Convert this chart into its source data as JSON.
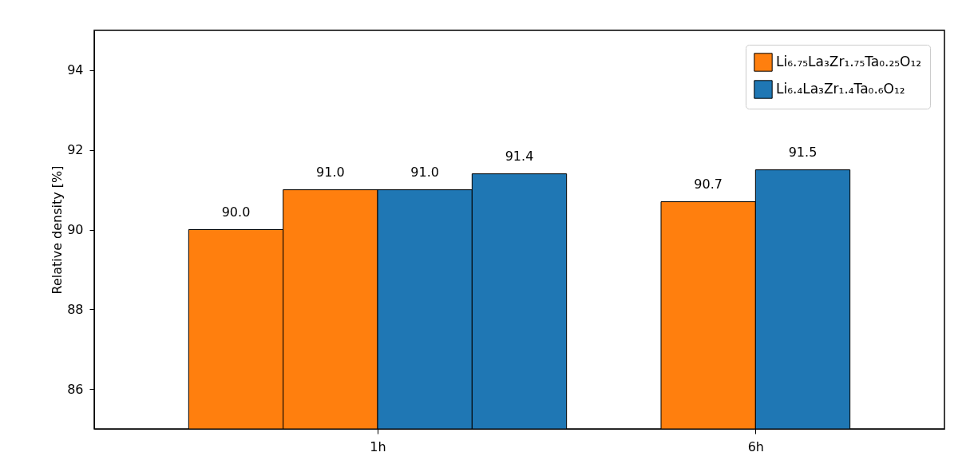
{
  "chart_data": {
    "type": "bar",
    "ylabel": "Relative density [%]",
    "categories": [
      "1h",
      "6h"
    ],
    "series": [
      {
        "name": "Li₆.₇₅La₃Zr₁.₇₅Ta₀.₂₅O₁₂",
        "color": "#ff7f0e",
        "values": [
          90.0,
          90.7
        ],
        "value_labels": [
          "90.0",
          "90.7"
        ]
      },
      {
        "color": "#ff7f0e",
        "values": [
          91.0,
          null
        ],
        "value_labels": [
          "91.0",
          null
        ]
      },
      {
        "color": "#1f77b4",
        "values": [
          91.0,
          null
        ],
        "value_labels": [
          "91.0",
          null
        ]
      },
      {
        "name": "Li₆.₄La₃Zr₁.₄Ta₀.₆O₁₂",
        "color": "#1f77b4",
        "values": [
          91.4,
          91.5
        ],
        "value_labels": [
          "91.4",
          "91.5"
        ]
      }
    ],
    "ylim": [
      85,
      95
    ],
    "yticks": [
      86,
      88,
      90,
      92,
      94
    ],
    "legend": "top right",
    "grid": false
  }
}
